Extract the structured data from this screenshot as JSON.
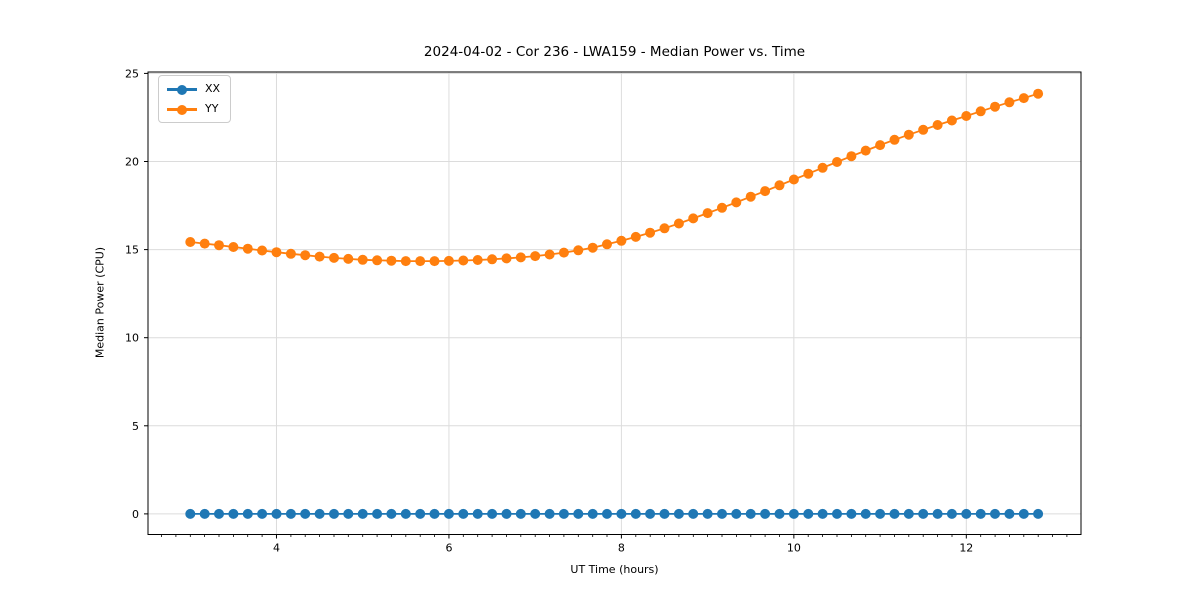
{
  "figure": {
    "background": "#ffffff",
    "frame_color": "#000000",
    "grid_color": "#dcdcdc"
  },
  "chart_data": {
    "type": "line",
    "title": "2024-04-02 - Cor 236 - LWA159 - Median Power vs. Time",
    "xlabel": "UT Time (hours)",
    "ylabel": "Median Power (CPU)",
    "xlim": [
      2.51,
      13.33
    ],
    "ylim": [
      -1.17,
      25.08
    ],
    "xticks": [
      4,
      6,
      8,
      10,
      12
    ],
    "yticks": [
      0,
      5,
      10,
      15,
      20,
      25
    ],
    "x_minor_tick_step": 0.16667,
    "grid": true,
    "legend_position": "upper left",
    "x": [
      3.0,
      3.167,
      3.333,
      3.5,
      3.667,
      3.833,
      4.0,
      4.167,
      4.333,
      4.5,
      4.667,
      4.833,
      5.0,
      5.167,
      5.333,
      5.5,
      5.667,
      5.833,
      6.0,
      6.167,
      6.333,
      6.5,
      6.667,
      6.833,
      7.0,
      7.167,
      7.333,
      7.5,
      7.667,
      7.833,
      8.0,
      8.167,
      8.333,
      8.5,
      8.667,
      8.833,
      9.0,
      9.167,
      9.333,
      9.5,
      9.667,
      9.833,
      10.0,
      10.167,
      10.333,
      10.5,
      10.667,
      10.833,
      11.0,
      11.167,
      11.333,
      11.5,
      11.667,
      11.833,
      12.0,
      12.167,
      12.333,
      12.5,
      12.667,
      12.833
    ],
    "series": [
      {
        "name": "XX",
        "color": "#1f77b4",
        "values": [
          0,
          0,
          0,
          0,
          0,
          0,
          0,
          0,
          0,
          0,
          0,
          0,
          0,
          0,
          0,
          0,
          0,
          0,
          0,
          0,
          0,
          0,
          0,
          0,
          0,
          0,
          0,
          0,
          0,
          0,
          0,
          0,
          0,
          0,
          0,
          0,
          0,
          0,
          0,
          0,
          0,
          0,
          0,
          0,
          0,
          0,
          0,
          0,
          0,
          0,
          0,
          0,
          0,
          0,
          0,
          0,
          0,
          0,
          0,
          0
        ]
      },
      {
        "name": "YY",
        "color": "#ff7f0e",
        "values": [
          15.43,
          15.34,
          15.25,
          15.15,
          15.05,
          14.95,
          14.85,
          14.76,
          14.68,
          14.6,
          14.53,
          14.47,
          14.42,
          14.39,
          14.37,
          14.35,
          14.35,
          14.35,
          14.36,
          14.38,
          14.41,
          14.45,
          14.5,
          14.56,
          14.63,
          14.72,
          14.83,
          14.96,
          15.11,
          15.3,
          15.5,
          15.72,
          15.96,
          16.21,
          16.48,
          16.77,
          17.07,
          17.37,
          17.68,
          18.0,
          18.32,
          18.65,
          18.98,
          19.31,
          19.64,
          19.97,
          20.3,
          20.62,
          20.93,
          21.23,
          21.52,
          21.8,
          22.07,
          22.33,
          22.58,
          22.85,
          23.11,
          23.36,
          23.6,
          23.85
        ]
      }
    ]
  }
}
